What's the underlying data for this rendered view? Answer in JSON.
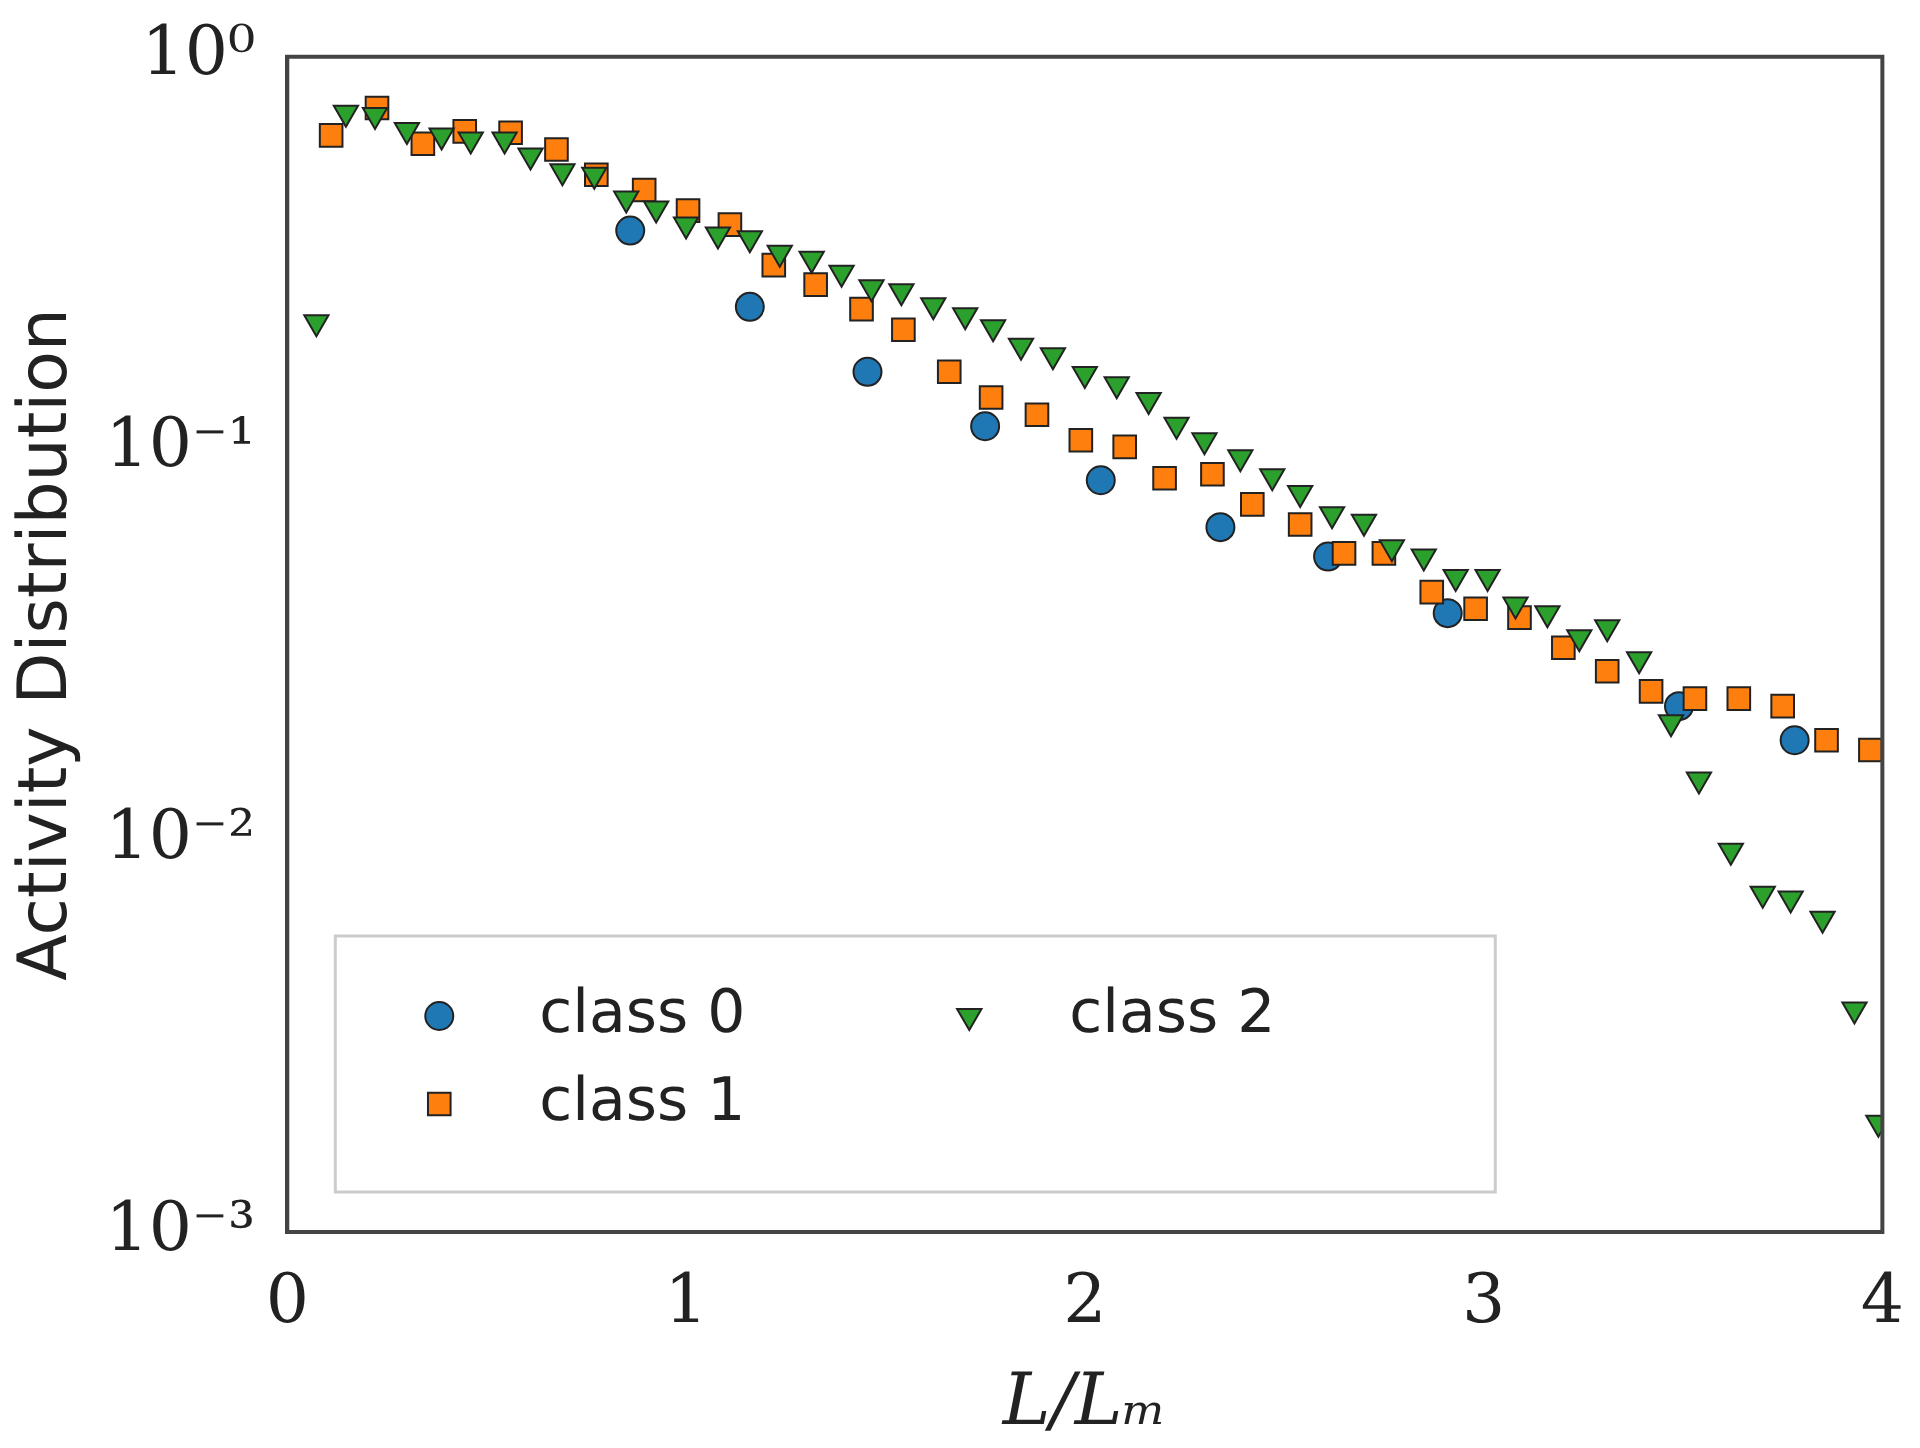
{
  "chart_data": {
    "type": "scatter",
    "xlabel": "L/Lₘ",
    "ylabel": "Activity Distribution",
    "log": "y",
    "grid": false,
    "legend": "bottom left",
    "xlim": [
      0,
      4
    ],
    "xticks": [
      0,
      1,
      2,
      3,
      4
    ],
    "ylim": [
      0.001,
      1
    ],
    "yticks": [
      {
        "value": 0.001,
        "label": "10⁻³"
      },
      {
        "value": 0.01,
        "label": "10⁻²"
      },
      {
        "value": 0.1,
        "label": "10⁻¹"
      },
      {
        "value": 1,
        "label": "10⁰"
      }
    ],
    "series": [
      {
        "name": "class 0",
        "color": "#1f77b4",
        "marker": "circle",
        "x": [
          0.86,
          1.16,
          1.455,
          1.75,
          2.04,
          2.34,
          2.61,
          2.91,
          3.49,
          3.78
        ],
        "values": [
          0.36,
          0.23,
          0.157,
          0.114,
          0.083,
          0.063,
          0.053,
          0.038,
          0.022,
          0.018
        ]
      },
      {
        "name": "class 1",
        "color": "#ff7f0e",
        "marker": "square",
        "x": [
          0.11,
          0.225,
          0.34,
          0.445,
          0.56,
          0.675,
          0.775,
          0.895,
          1.005,
          1.11,
          1.22,
          1.325,
          1.44,
          1.545,
          1.66,
          1.765,
          1.88,
          1.99,
          2.1,
          2.2,
          2.32,
          2.42,
          2.54,
          2.65,
          2.75,
          2.87,
          2.98,
          3.09,
          3.2,
          3.31,
          3.42,
          3.53,
          3.64,
          3.75,
          3.86,
          3.97
        ],
        "values": [
          0.63,
          0.74,
          0.6,
          0.645,
          0.64,
          0.58,
          0.5,
          0.457,
          0.405,
          0.373,
          0.294,
          0.262,
          0.227,
          0.201,
          0.157,
          0.135,
          0.122,
          0.105,
          0.101,
          0.084,
          0.086,
          0.072,
          0.064,
          0.054,
          0.054,
          0.043,
          0.039,
          0.037,
          0.031,
          0.027,
          0.024,
          0.023,
          0.023,
          0.022,
          0.018,
          0.017
        ]
      },
      {
        "name": "class 2",
        "color": "#2ca02c",
        "marker": "triangle",
        "x": [
          0.073,
          0.147,
          0.22,
          0.3,
          0.387,
          0.46,
          0.545,
          0.61,
          0.69,
          0.77,
          0.85,
          0.925,
          1.0,
          1.08,
          1.16,
          1.235,
          1.315,
          1.39,
          1.465,
          1.54,
          1.62,
          1.7,
          1.77,
          1.84,
          1.92,
          2.0,
          2.08,
          2.16,
          2.23,
          2.3,
          2.39,
          2.47,
          2.54,
          2.62,
          2.7,
          2.77,
          2.85,
          2.93,
          3.01,
          3.08,
          3.16,
          3.24,
          3.31,
          3.39,
          3.47,
          3.54,
          3.62,
          3.7,
          3.77,
          3.85,
          3.93,
          3.99
        ],
        "values": [
          0.21,
          0.72,
          0.71,
          0.65,
          0.63,
          0.615,
          0.615,
          0.56,
          0.51,
          0.5,
          0.435,
          0.41,
          0.373,
          0.352,
          0.344,
          0.316,
          0.305,
          0.281,
          0.258,
          0.252,
          0.232,
          0.219,
          0.204,
          0.183,
          0.173,
          0.155,
          0.146,
          0.133,
          0.115,
          0.105,
          0.095,
          0.085,
          0.077,
          0.068,
          0.065,
          0.056,
          0.053,
          0.047,
          0.047,
          0.04,
          0.038,
          0.033,
          0.035,
          0.029,
          0.02,
          0.0143,
          0.0094,
          0.0073,
          0.0071,
          0.0063,
          0.0037,
          0.0019
        ]
      }
    ]
  }
}
